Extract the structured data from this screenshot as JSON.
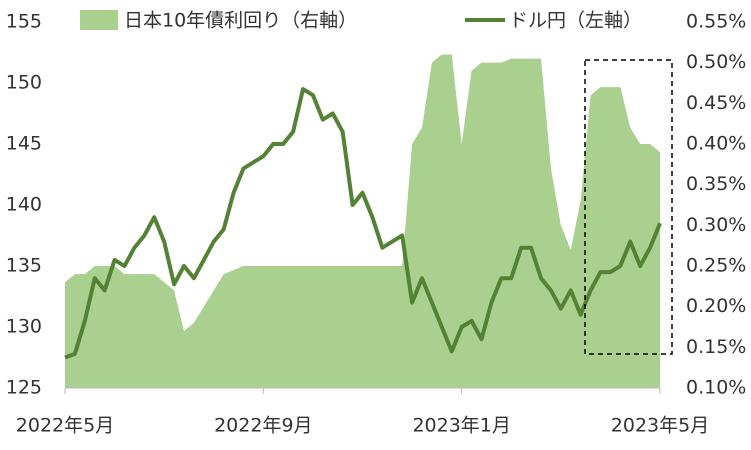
{
  "chart_data": {
    "type": "combo",
    "x": [
      0,
      0.2,
      0.4,
      0.6,
      0.8,
      1,
      1.2,
      1.4,
      1.6,
      1.8,
      2,
      2.2,
      2.4,
      2.6,
      2.8,
      3,
      3.2,
      3.4,
      3.6,
      3.8,
      4,
      4.2,
      4.4,
      4.6,
      4.8,
      5,
      5.2,
      5.4,
      5.6,
      5.8,
      6,
      6.2,
      6.4,
      6.6,
      6.8,
      7,
      7.2,
      7.4,
      7.6,
      7.8,
      8,
      8.2,
      8.4,
      8.6,
      8.8,
      9,
      9.2,
      9.4,
      9.6,
      9.8,
      10,
      10.2,
      10.4,
      10.6,
      10.8,
      11,
      11.2,
      11.4,
      11.6,
      11.8,
      12
    ],
    "xlim": [
      0,
      12
    ],
    "xticks": [
      {
        "value": 0,
        "label": "2022年5月"
      },
      {
        "value": 4,
        "label": "2022年9月"
      },
      {
        "value": 8,
        "label": "2023年1月"
      },
      {
        "value": 12,
        "label": "2023年5月"
      }
    ],
    "ylim": [
      125,
      155
    ],
    "yticks": [
      125,
      130,
      135,
      140,
      145,
      150,
      155
    ],
    "y2lim": [
      0.1,
      0.55
    ],
    "y2ticks": [
      {
        "value": 0.1,
        "label": "0.10%"
      },
      {
        "value": 0.15,
        "label": "0.15%"
      },
      {
        "value": 0.2,
        "label": "0.20%"
      },
      {
        "value": 0.25,
        "label": "0.25%"
      },
      {
        "value": 0.3,
        "label": "0.30%"
      },
      {
        "value": 0.35,
        "label": "0.35%"
      },
      {
        "value": 0.4,
        "label": "0.40%"
      },
      {
        "value": 0.45,
        "label": "0.45%"
      },
      {
        "value": 0.5,
        "label": "0.50%"
      },
      {
        "value": 0.55,
        "label": "0.55%"
      }
    ],
    "series": [
      {
        "name": "日本10年債利回り（右軸）",
        "type": "area",
        "axis": "y2",
        "color": "#a9d08e",
        "values": [
          0.23,
          0.24,
          0.24,
          0.25,
          0.25,
          0.25,
          0.24,
          0.24,
          0.24,
          0.24,
          0.23,
          0.22,
          0.17,
          0.18,
          0.2,
          0.22,
          0.24,
          0.245,
          0.25,
          0.25,
          0.25,
          0.25,
          0.25,
          0.25,
          0.25,
          0.25,
          0.25,
          0.25,
          0.25,
          0.25,
          0.25,
          0.25,
          0.25,
          0.25,
          0.25,
          0.4,
          0.42,
          0.5,
          0.51,
          0.51,
          0.4,
          0.49,
          0.5,
          0.5,
          0.5,
          0.505,
          0.505,
          0.505,
          0.505,
          0.37,
          0.3,
          0.27,
          0.33,
          0.46,
          0.47,
          0.47,
          0.47,
          0.42,
          0.4,
          0.4,
          0.39
        ]
      },
      {
        "name": "ドル円（左軸）",
        "type": "line",
        "color": "#548235",
        "values": [
          127.5,
          127.8,
          130.5,
          134,
          133,
          135.5,
          135,
          136.5,
          137.5,
          139,
          137,
          133.5,
          135,
          134,
          135.5,
          137,
          138,
          141,
          143,
          143.5,
          144,
          145,
          145,
          146,
          149.5,
          149,
          147,
          147.5,
          146,
          140,
          141,
          139,
          136.5,
          137,
          137.5,
          132,
          134,
          132,
          130,
          128,
          130,
          130.5,
          129,
          132,
          134,
          134,
          136.5,
          136.5,
          134,
          133,
          131.5,
          133,
          131,
          133,
          134.5,
          134.5,
          135,
          137,
          135,
          136.5,
          138.5
        ]
      }
    ]
  }
}
